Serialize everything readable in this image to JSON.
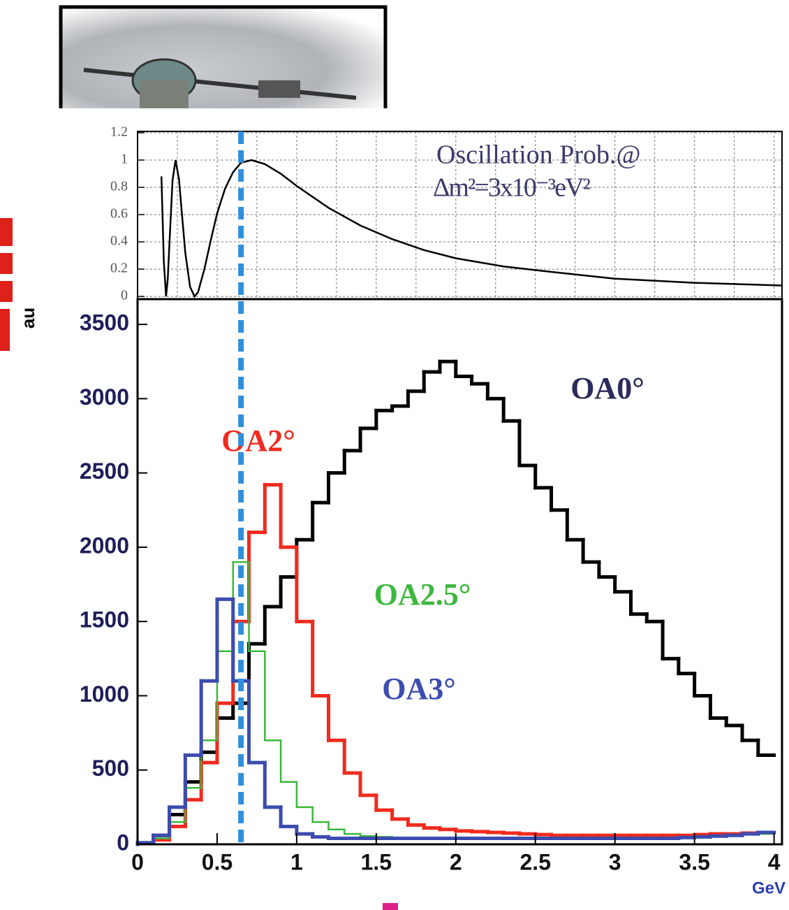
{
  "chart_data": [
    {
      "type": "line",
      "annotations": [
        "Oscillation Prob.@",
        "Δm²=3x10⁻³eV²"
      ],
      "x": [
        0.15,
        0.165,
        0.179,
        0.19,
        0.2,
        0.22,
        0.2385,
        0.26,
        0.28,
        0.3,
        0.33,
        0.358,
        0.38,
        0.42,
        0.46,
        0.5,
        0.55,
        0.6,
        0.65,
        0.716,
        0.8,
        0.9,
        1.0,
        1.2,
        1.4,
        1.6,
        1.8,
        2.0,
        2.3,
        2.6,
        3.0,
        3.5,
        4.05
      ],
      "values": [
        0.88,
        0.26,
        0,
        0.13,
        0.38,
        0.85,
        1,
        0.86,
        0.59,
        0.32,
        0.07,
        0,
        0.03,
        0.2,
        0.41,
        0.61,
        0.79,
        0.91,
        0.98,
        1,
        0.97,
        0.9,
        0.81,
        0.65,
        0.52,
        0.42,
        0.34,
        0.28,
        0.22,
        0.18,
        0.13,
        0.1,
        0.08
      ],
      "color": "#000000",
      "xlim": [
        0,
        4.05
      ],
      "ylim": [
        -0.02,
        1.21
      ],
      "xticks": [
        0,
        0.25,
        0.5,
        0.75,
        1,
        1.25,
        1.5,
        1.75,
        2,
        2.25,
        2.5,
        2.75,
        3,
        3.25,
        3.5,
        3.75,
        4
      ],
      "yticks": [
        0,
        0.2,
        0.4,
        0.6,
        0.8,
        1,
        1.2
      ],
      "grid": true
    },
    {
      "type": "histogram",
      "x_label": "GeV",
      "y_label": "au",
      "bins": [
        0,
        0.1,
        0.2,
        0.3,
        0.4,
        0.5,
        0.6,
        0.7,
        0.8,
        0.9,
        1.0,
        1.1,
        1.2,
        1.3,
        1.4,
        1.5,
        1.6,
        1.7,
        1.8,
        1.9,
        2.0,
        2.1,
        2.2,
        2.3,
        2.4,
        2.5,
        2.6,
        2.7,
        2.8,
        2.9,
        3.0,
        3.1,
        3.2,
        3.3,
        3.4,
        3.5,
        3.6,
        3.7,
        3.8,
        3.9,
        4.0
      ],
      "series": [
        {
          "name": "OA0°",
          "color": "#000000",
          "label_color": "#2b2b5c",
          "values": [
            10,
            60,
            200,
            420,
            620,
            850,
            950,
            1350,
            1600,
            1800,
            2050,
            2300,
            2500,
            2650,
            2800,
            2920,
            2950,
            3050,
            3180,
            3250,
            3150,
            3100,
            3000,
            2850,
            2550,
            2400,
            2250,
            2050,
            1900,
            1800,
            1700,
            1550,
            1500,
            1250,
            1150,
            1000,
            850,
            800,
            700,
            600
          ]
        },
        {
          "name": "OA2°",
          "color": "#f02a1e",
          "label_color": "#f02a1e",
          "values": [
            5,
            30,
            120,
            300,
            550,
            950,
            1500,
            2100,
            2420,
            2000,
            1500,
            1000,
            700,
            480,
            330,
            230,
            170,
            130,
            110,
            100,
            90,
            85,
            80,
            75,
            70,
            65,
            60,
            60,
            60,
            60,
            60,
            60,
            60,
            60,
            60,
            65,
            70,
            70,
            75,
            80
          ]
        },
        {
          "name": "OA2.5°",
          "color": "#3cb83c",
          "label_color": "#3cb83c",
          "values": [
            5,
            40,
            150,
            380,
            700,
            1300,
            1900,
            1300,
            700,
            420,
            250,
            150,
            100,
            70,
            55,
            50,
            45,
            45,
            45,
            45,
            45,
            45,
            45,
            45,
            45,
            45,
            45,
            45,
            45,
            45,
            45,
            45,
            45,
            45,
            50,
            50,
            55,
            60,
            65,
            70
          ]
        },
        {
          "name": "OA3°",
          "color": "#3c4cb0",
          "label_color": "#3c4cb0",
          "values": [
            10,
            60,
            250,
            600,
            1100,
            1650,
            1100,
            550,
            250,
            120,
            70,
            50,
            40,
            40,
            40,
            40,
            40,
            40,
            40,
            40,
            40,
            40,
            40,
            40,
            40,
            40,
            40,
            40,
            40,
            40,
            40,
            40,
            40,
            40,
            45,
            50,
            55,
            60,
            70,
            80
          ]
        }
      ],
      "vline": 0.65,
      "vline_color": "#2f8fdc",
      "xlim": [
        0,
        4.05
      ],
      "ylim": [
        0,
        3670
      ],
      "xticks": [
        0,
        0.5,
        1,
        1.5,
        2,
        2.5,
        3,
        3.5,
        4
      ],
      "yticks": [
        0,
        500,
        1000,
        1500,
        2000,
        2500,
        3000,
        3500
      ],
      "grid": false
    }
  ]
}
